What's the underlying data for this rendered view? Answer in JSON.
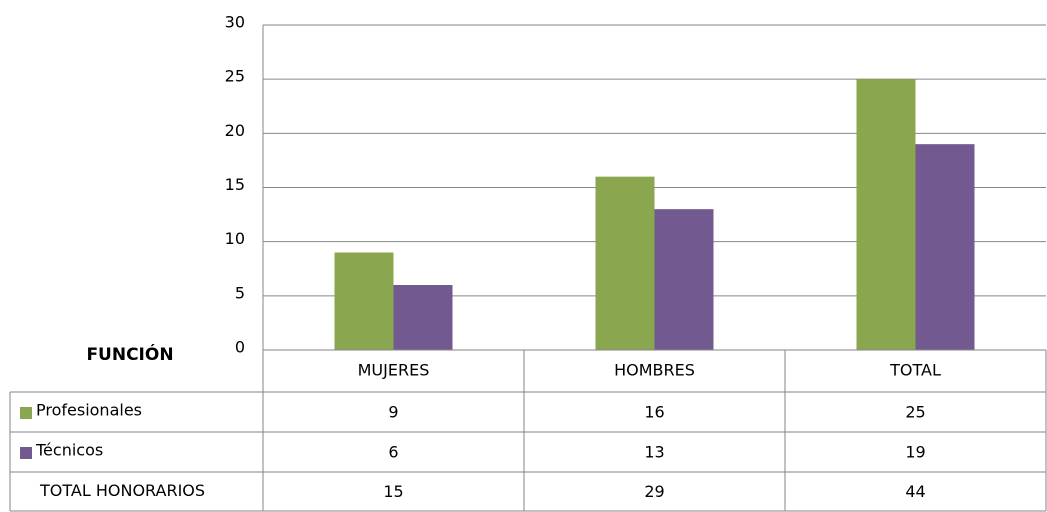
{
  "chart_data": {
    "type": "bar",
    "categories": [
      "MUJERES",
      "HOMBRES",
      "TOTAL"
    ],
    "series": [
      {
        "name": "Profesionales",
        "color": "#8aa64e",
        "values": [
          9,
          16,
          25
        ]
      },
      {
        "name": "Técnicos",
        "color": "#725990",
        "values": [
          6,
          13,
          19
        ]
      }
    ],
    "ylim": [
      0,
      30
    ],
    "yticks": [
      0,
      5,
      10,
      15,
      20,
      25,
      30
    ],
    "grid": true,
    "data_table": {
      "header": "FUNCIÓN",
      "total_label": "TOTAL HONORARIOS",
      "total_values": [
        15,
        29,
        44
      ]
    }
  }
}
